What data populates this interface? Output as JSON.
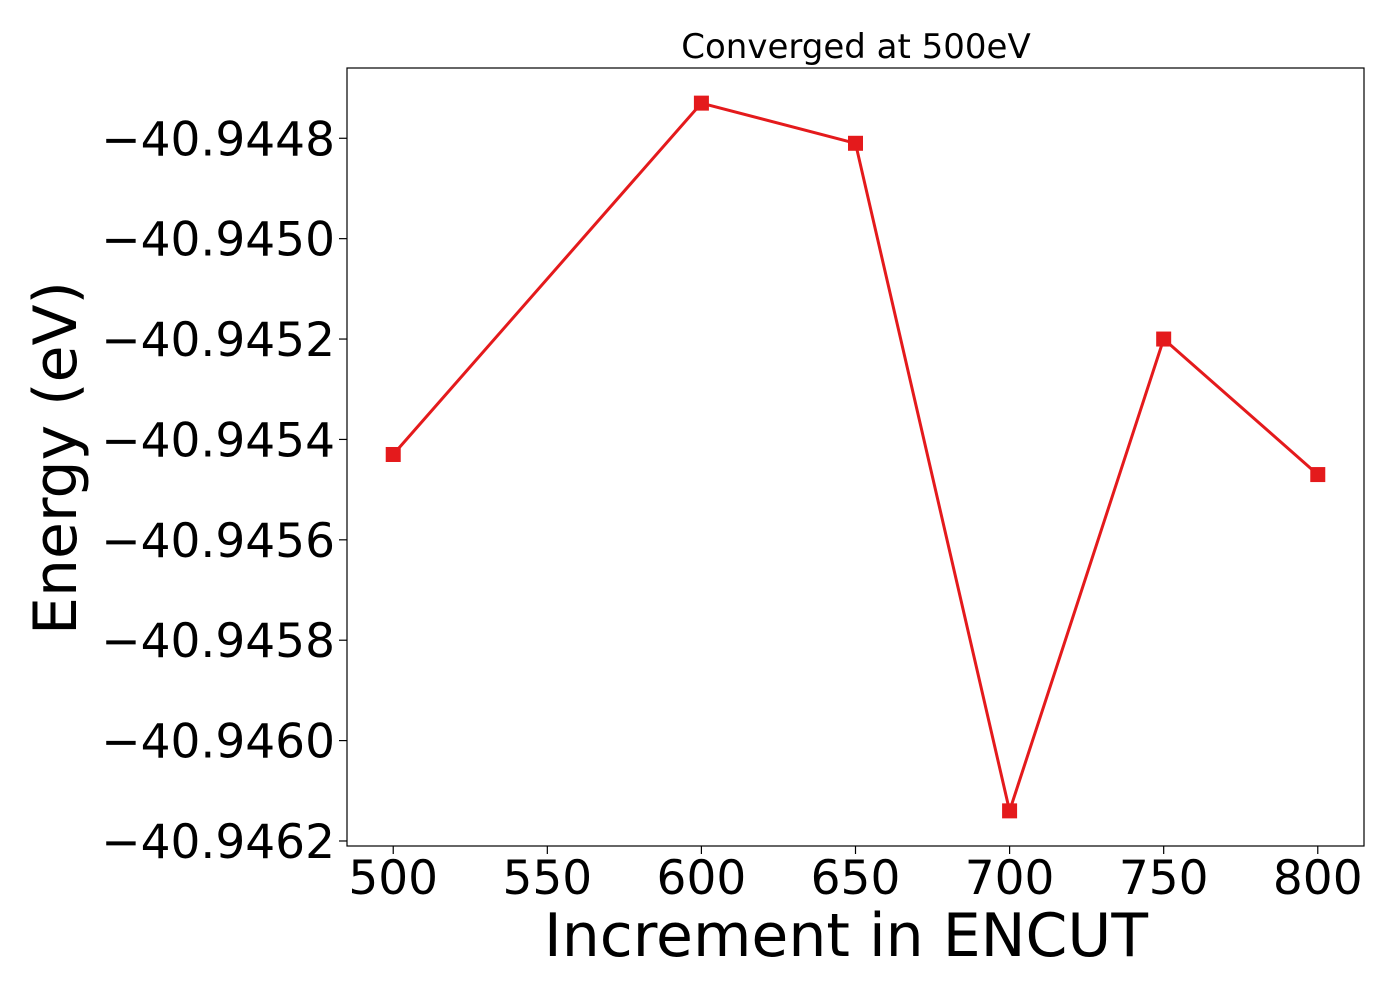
{
  "chart_data": {
    "type": "line",
    "title": "Converged at 500eV",
    "xlabel": "Increment in ENCUT",
    "ylabel": "Energy (eV)",
    "x": [
      500,
      600,
      650,
      700,
      750,
      800
    ],
    "series": [
      {
        "values": [
          -40.94543,
          -40.94473,
          -40.94481,
          -40.94614,
          -40.9452,
          -40.94547
        ],
        "color": "#e41a1c",
        "marker": "square"
      }
    ],
    "xticks": [
      500,
      550,
      600,
      650,
      700,
      750,
      800
    ],
    "xtick_labels": [
      "500",
      "550",
      "600",
      "650",
      "700",
      "750",
      "800"
    ],
    "yticks": [
      -40.9448,
      -40.945,
      -40.9452,
      -40.9454,
      -40.9456,
      -40.9458,
      -40.946,
      -40.9462
    ],
    "ytick_labels": [
      "−40.9448",
      "−40.9450",
      "−40.9452",
      "−40.9454",
      "−40.9456",
      "−40.9458",
      "−40.9460",
      "−40.9462"
    ],
    "xlim": [
      485,
      815
    ],
    "ylim": [
      -40.94621,
      -40.94466
    ],
    "grid": false,
    "legend": false
  }
}
